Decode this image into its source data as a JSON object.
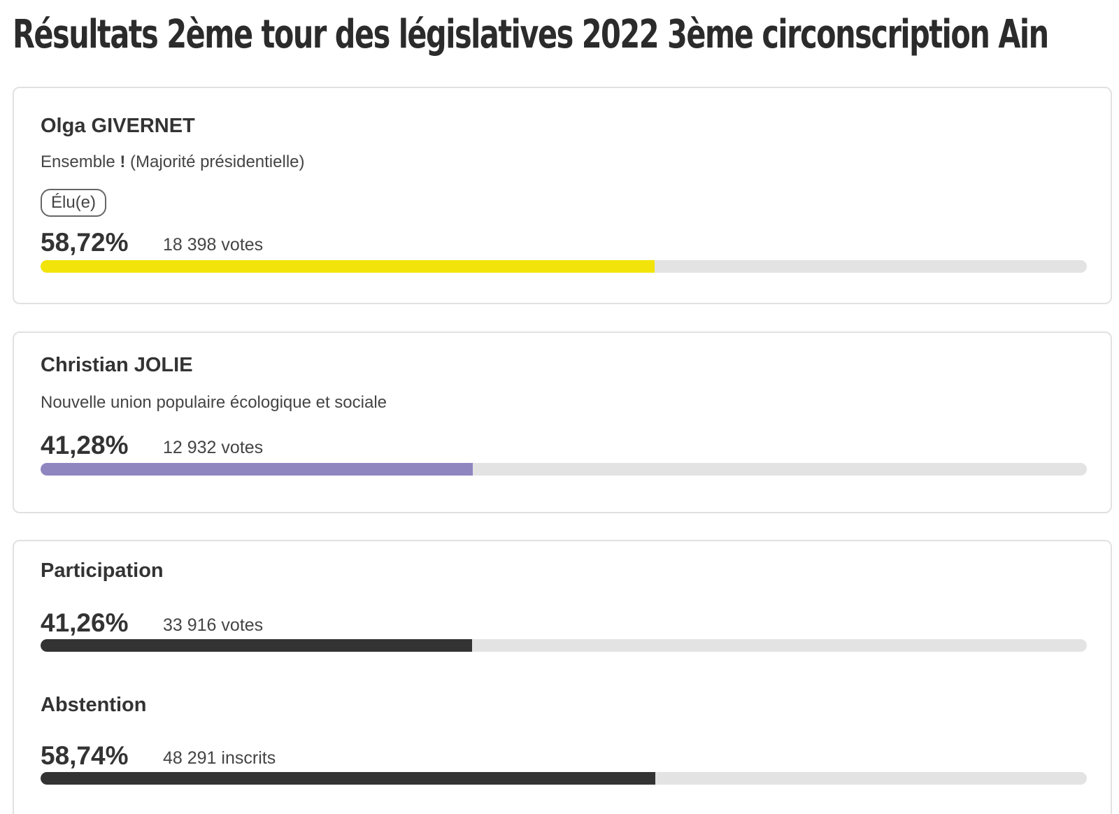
{
  "title": "Résultats 2ème tour des législatives 2022 3ème circonscription Ain",
  "candidates": [
    {
      "name": "Olga GIVERNET",
      "party_text": "Ensemble ",
      "party_excl": "!",
      "party_suffix": " (Majorité présidentielle)",
      "badge": "Élu(e)",
      "percent": "58,72%",
      "votes": "18 398 votes",
      "share": 0.5872,
      "color": "#f2e40a"
    },
    {
      "name": "Christian JOLIE",
      "party_text": "Nouvelle union populaire écologique et sociale",
      "percent": "41,28%",
      "votes": "12 932 votes",
      "share": 0.4128,
      "color": "#8f85bf"
    }
  ],
  "participation": {
    "label": "Participation",
    "percent": "41,26%",
    "votes": "33 916 votes",
    "share": 0.4126,
    "color": "#333333"
  },
  "abstention": {
    "label": "Abstention",
    "percent": "58,74%",
    "votes": "48 291 inscrits",
    "share": 0.5874,
    "color": "#333333"
  }
}
